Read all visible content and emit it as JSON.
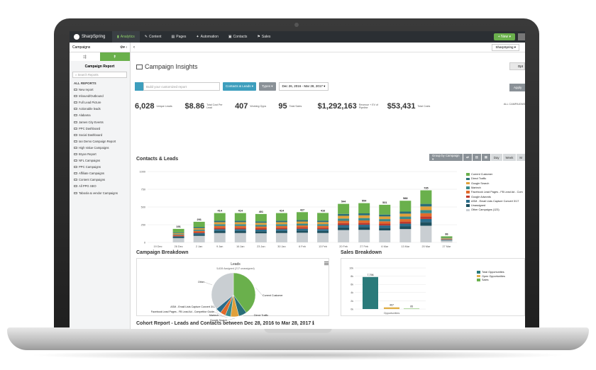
{
  "topbar": {
    "brand": "SharpSpring",
    "nav": [
      {
        "label": "Analytics",
        "icon": "chart-icon",
        "active": true
      },
      {
        "label": "Content",
        "icon": "pencil-icon",
        "active": false
      },
      {
        "label": "Pages",
        "icon": "page-icon",
        "active": false
      },
      {
        "label": "Automation",
        "icon": "wand-icon",
        "active": false
      },
      {
        "label": "Contacts",
        "icon": "contact-icon",
        "active": false
      },
      {
        "label": "Sales",
        "icon": "sales-icon",
        "active": false
      }
    ],
    "new_label": "+ New ▾"
  },
  "sidebar": {
    "header": "Campaigns",
    "title": "Campaign Report",
    "search_placeholder": "Search Reports",
    "section": "ALL REPORTS",
    "items": [
      "New report",
      "Inbound/Outbound",
      "Full Lead Picture",
      "Actionable leads",
      "Alabama",
      "James City Events",
      "PPC Dashboard",
      "Social Dashboard",
      "Ian Demo Campaign Report",
      "High Value Campaigns",
      "Bryan Report",
      "NFL Campaigns",
      "PPC Campaigns",
      "Affiliate Campaigns",
      "Content Campaigns",
      "All PPG SEO",
      "Taboola & vendor Campaigns"
    ]
  },
  "main": {
    "back": "‹",
    "account_select": "SharpSpring ▾",
    "page_title": "Campaign Insights",
    "options_label": "Opt",
    "filters": {
      "report_placeholder": "Build your customized report",
      "contacts_btn": "Contacts & Leads ▾",
      "types_btn": "Types ▾",
      "date_range": "Dec 26, 2016 - Mar 28, 2017 ▾",
      "apply": "Apply"
    },
    "stats": [
      {
        "value": "6,028",
        "label": "Unique Leads"
      },
      {
        "value": "$8.86",
        "label": "Total Cost Per Lead"
      },
      {
        "value": "407",
        "label": "Working Opps"
      },
      {
        "value": "95",
        "label": "Total Sales"
      },
      {
        "value": "$1,292,163",
        "label": "Revenue + EV of Pipeline"
      },
      {
        "value": "$53,431",
        "label": "Total Costs"
      }
    ],
    "stats_all": "ALL CAMPAIGNS"
  },
  "contacts_leads": {
    "title": "Contacts & Leads",
    "toolbar": [
      "Group by Campaign ▾",
      "⇄",
      "▥",
      "▦",
      "Day",
      "Week",
      "M"
    ],
    "legend": [
      {
        "name": "Current Customer",
        "color": "#6ab04c"
      },
      {
        "name": "Direct Traffic",
        "color": "#2a6f78"
      },
      {
        "name": "Google Search",
        "color": "#e0a03a"
      },
      {
        "name": "Martech",
        "color": "#3a8a8a"
      },
      {
        "name": "Facebook Lead Pages - FB Lead Ad - Com",
        "color": "#e06a2a"
      },
      {
        "name": "Google Adwords",
        "color": "#c0392b"
      },
      {
        "name": "ASM - Email Lists Capture Convert 3/17",
        "color": "#2b6c8a"
      },
      {
        "name": "Unassigned",
        "color": "#1d4f5e"
      },
      {
        "name": "Other Campaigns (123)",
        "color": "#c9ced2"
      }
    ]
  },
  "chart_data": [
    {
      "type": "bar",
      "title": "Contacts & Leads",
      "stacked": true,
      "categories": [
        "19 Dec",
        "26 Dec",
        "2 Jan",
        "9 Jan",
        "16 Jan",
        "23 Jan",
        "30 Jan",
        "6 Feb",
        "13 Feb",
        "20 Feb",
        "27 Feb",
        "6 Mar",
        "13 Mar",
        "20 Mar",
        "27 Mar"
      ],
      "totals": [
        null,
        191,
        291,
        414,
        414,
        401,
        414,
        427,
        416,
        544,
        554,
        531,
        588,
        735,
        86
      ],
      "ylim": [
        0,
        1000
      ],
      "yticks": [
        0,
        250,
        500,
        750,
        1000
      ],
      "legend_position": "right",
      "grid": true
    },
    {
      "type": "pie",
      "title": "Leads",
      "subtitle": "5,628 Assigned (217 unassigned)",
      "labels": [
        "Current Customer",
        "Direct Traffic",
        "Google Search",
        "Martech",
        "Facebook Lead Pages - FB Lead Ad - Competitor Guide",
        "ASM - Email Lists Capture Convert 3/17",
        "Other"
      ],
      "values": [
        40,
        6,
        6,
        4,
        4,
        4,
        36
      ],
      "colors": [
        "#6ab04c",
        "#2a6f78",
        "#e0a03a",
        "#3a8a8a",
        "#e06a2a",
        "#2b6c8a",
        "#c9ced2"
      ]
    },
    {
      "type": "bar",
      "title": "Sales Breakdown",
      "categories": [
        "Opportunities"
      ],
      "series": [
        {
          "name": "Total Opportunities",
          "values": [
            7796
          ],
          "color": "#2a7a7a"
        },
        {
          "name": "Open Opportunities",
          "values": [
            407
          ],
          "color": "#e0b04a"
        },
        {
          "name": "Sales",
          "values": [
            95
          ],
          "color": "#6ab04c"
        }
      ],
      "ylim": [
        0,
        10000
      ],
      "yticks": [
        "0k",
        "2k",
        "4k",
        "6k",
        "8k",
        "10k"
      ],
      "data_labels": [
        "7,796",
        "407",
        "95"
      ],
      "legend_position": "right"
    }
  ],
  "breakdown": {
    "title": "Campaign Breakdown"
  },
  "sales": {
    "title": "Sales Breakdown"
  },
  "cohort": {
    "title": "Cohort Report - Leads and Contacts between Dec 28, 2016 to Mar 28, 2017 ℹ"
  }
}
